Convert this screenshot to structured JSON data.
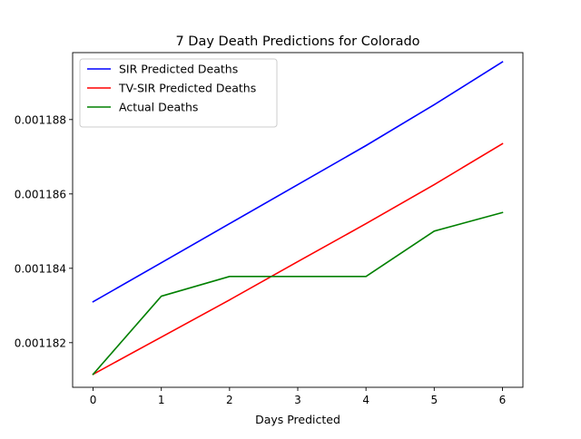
{
  "chart_data": {
    "type": "line",
    "title": "7 Day Death Predictions for Colorado",
    "xlabel": "Days Predicted",
    "ylabel": "",
    "x": [
      0,
      1,
      2,
      3,
      4,
      5,
      6
    ],
    "xlim": [
      -0.3,
      6.3
    ],
    "ylim": [
      0.0011808,
      0.0011898
    ],
    "xticks": [
      0,
      1,
      2,
      3,
      4,
      5,
      6
    ],
    "yticks": [
      0.001182,
      0.001184,
      0.001186,
      0.001188
    ],
    "ytick_labels": [
      "0.001182",
      "0.001184",
      "0.001186",
      "0.001188"
    ],
    "grid": false,
    "legend_position": "top-left",
    "series": [
      {
        "name": "SIR Predicted Deaths",
        "color": "#0000ff",
        "values": [
          0.0011831,
          0.00118415,
          0.0011852,
          0.00118625,
          0.0011873,
          0.0011884,
          0.00118955
        ]
      },
      {
        "name": "TV-SIR Predicted Deaths",
        "color": "#ff0000",
        "values": [
          0.00118115,
          0.00118215,
          0.00118315,
          0.00118418,
          0.0011852,
          0.00118625,
          0.00118735
        ]
      },
      {
        "name": "Actual Deaths",
        "color": "#008000",
        "values": [
          0.00118115,
          0.00118325,
          0.00118378,
          0.00118378,
          0.00118378,
          0.001185,
          0.0011855
        ]
      }
    ]
  }
}
